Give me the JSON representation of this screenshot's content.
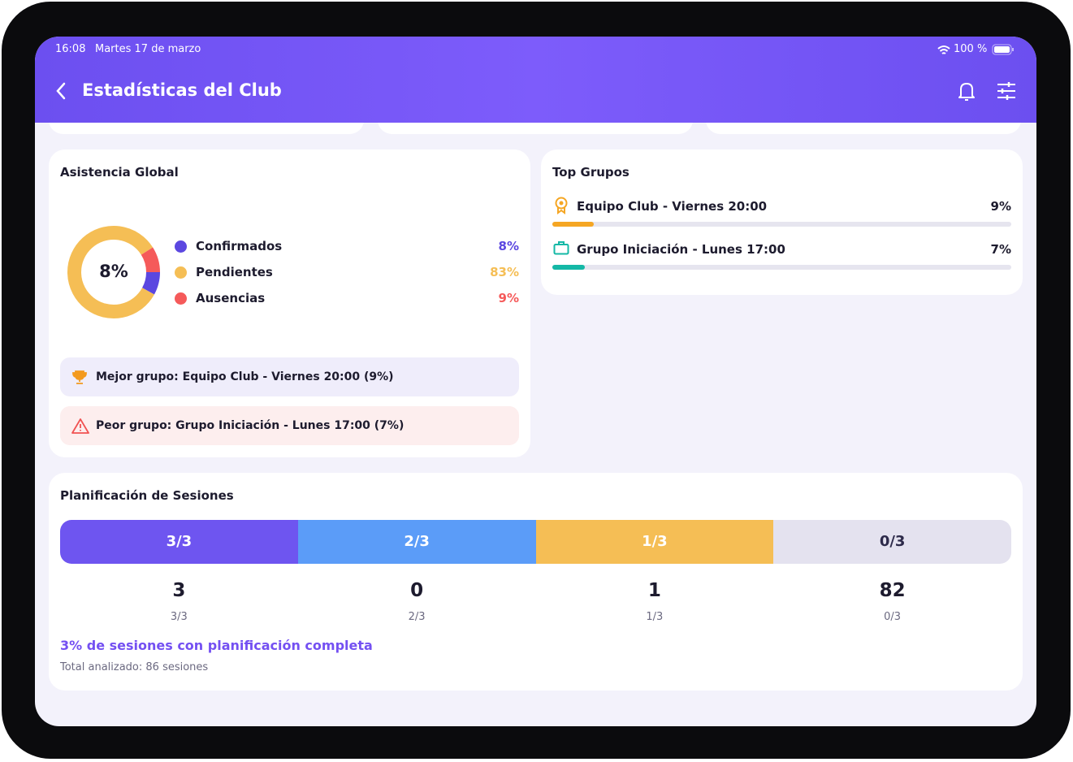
{
  "status_bar": {
    "time": "16:08",
    "date": "Martes 17 de marzo",
    "battery": "100 %"
  },
  "header": {
    "title": "Estadísticas del Club"
  },
  "attendance": {
    "title": "Asistencia Global",
    "type": "pie",
    "categories": [
      "Confirmados",
      "Pendientes",
      "Ausencias"
    ],
    "values": [
      8,
      83,
      9
    ],
    "value_labels": [
      "8%",
      "83%",
      "9%"
    ],
    "colors": [
      "#5b47e0",
      "#f5be55",
      "#f55a5a"
    ],
    "best": "Mejor grupo: Equipo Club - Viernes 20:00 (9%)",
    "worst": "Peor grupo: Grupo Iniciación - Lunes 17:00 (7%)"
  },
  "top_groups": {
    "title": "Top Grupos",
    "items": [
      {
        "name": "Equipo Club - Viernes 20:00",
        "value": 9,
        "value_label": "9%",
        "color": "#f5a623"
      },
      {
        "name": "Grupo Iniciación - Lunes 17:00",
        "value": 7,
        "value_label": "7%",
        "color": "#14b8a6"
      }
    ],
    "xlim": [
      0,
      100
    ]
  },
  "planning": {
    "title": "Planificación de Sesiones",
    "segments": [
      {
        "label": "3/3",
        "count": 3,
        "color": "#6e55f0"
      },
      {
        "label": "2/3",
        "count": 0,
        "color": "#5b9cf8"
      },
      {
        "label": "1/3",
        "count": 1,
        "color": "#f5be55"
      },
      {
        "label": "0/3",
        "count": 82,
        "color": "#e4e2ef"
      }
    ],
    "summary": "3% de sesiones con planificación completa",
    "total": "Total analizado: 86 sesiones"
  }
}
